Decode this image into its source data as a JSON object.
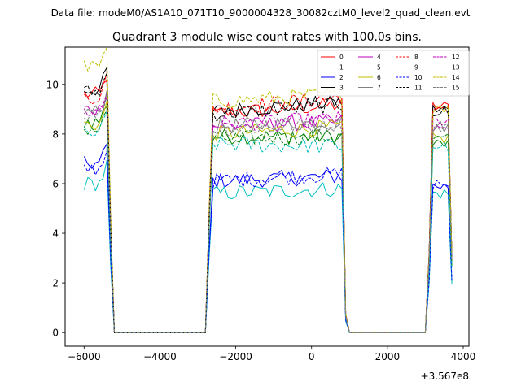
{
  "chart_data": {
    "type": "line",
    "suptitle": "Data file: modeM0/AS1A10_071T10_9000004328_30082cztM0_level2_quad_clean.evt",
    "title": "Quadrant 3 module wise count rates with 100.0s bins.",
    "xlabel": "",
    "ylabel": "",
    "x_offset_label": "+3.567e8",
    "xlim": [
      -6500,
      4150
    ],
    "ylim": [
      -0.55,
      11.5
    ],
    "x_ticks": [
      -6000,
      -4000,
      -2000,
      0,
      2000,
      4000
    ],
    "x_tick_labels": [
      "−6000",
      "−4000",
      "−2000",
      "0",
      "2000",
      "4000"
    ],
    "y_ticks": [
      0,
      2,
      4,
      6,
      8,
      10
    ],
    "y_tick_labels": [
      "0",
      "2",
      "4",
      "6",
      "8",
      "10"
    ],
    "grid": false,
    "legend_position": "top-right",
    "legend_columns": 4,
    "series": [
      {
        "name": "0",
        "color": "#ff0000",
        "style": "solid",
        "levels": [
          9.6,
          8.8,
          9.2,
          9.1
        ]
      },
      {
        "name": "1",
        "color": "#008000",
        "style": "solid",
        "levels": [
          8.5,
          7.9,
          7.9,
          7.6
        ]
      },
      {
        "name": "2",
        "color": "#0000ff",
        "style": "solid",
        "levels": [
          6.8,
          6.1,
          6.3,
          5.9
        ]
      },
      {
        "name": "3",
        "color": "#000000",
        "style": "solid",
        "levels": [
          9.8,
          8.9,
          9.3,
          9.0
        ]
      },
      {
        "name": "4",
        "color": "#bf00bf",
        "style": "solid",
        "levels": [
          9.0,
          8.3,
          8.5,
          8.2
        ]
      },
      {
        "name": "5",
        "color": "#00bfbf",
        "style": "solid",
        "levels": [
          6.0,
          5.6,
          5.8,
          5.6
        ]
      },
      {
        "name": "6",
        "color": "#bfbf00",
        "style": "solid",
        "levels": [
          8.4,
          8.0,
          8.3,
          7.8
        ]
      },
      {
        "name": "7",
        "color": "#808080",
        "style": "solid",
        "levels": [
          8.9,
          8.3,
          8.5,
          8.3
        ]
      },
      {
        "name": "8",
        "color": "#ff0000",
        "style": "dashed",
        "levels": [
          9.5,
          9.0,
          9.5,
          8.9
        ]
      },
      {
        "name": "9",
        "color": "#008000",
        "style": "dashed",
        "levels": [
          8.2,
          7.8,
          7.9,
          7.8
        ]
      },
      {
        "name": "10",
        "color": "#0000ff",
        "style": "dashed",
        "levels": [
          6.6,
          6.1,
          6.4,
          6.0
        ]
      },
      {
        "name": "11",
        "color": "#000000",
        "style": "dashed",
        "levels": [
          9.7,
          8.8,
          9.2,
          8.9
        ]
      },
      {
        "name": "12",
        "color": "#bf00bf",
        "style": "dashed",
        "levels": [
          8.9,
          8.4,
          8.6,
          8.5
        ]
      },
      {
        "name": "13",
        "color": "#00bfbf",
        "style": "dashed",
        "levels": [
          8.0,
          7.6,
          7.5,
          7.5
        ]
      },
      {
        "name": "14",
        "color": "#bfbf00",
        "style": "dashed",
        "levels": [
          10.7,
          9.3,
          9.6,
          9.1
        ]
      },
      {
        "name": "15",
        "color": "#808080",
        "style": "dashed",
        "levels": [
          8.8,
          8.2,
          8.4,
          8.3
        ]
      }
    ],
    "segments": [
      {
        "x_start": -6000,
        "x_end": -5200
      },
      {
        "x_start": -2700,
        "x_end": 900
      },
      {
        "x_start": 3100,
        "x_end": 3700
      }
    ],
    "gap_value": 0
  }
}
